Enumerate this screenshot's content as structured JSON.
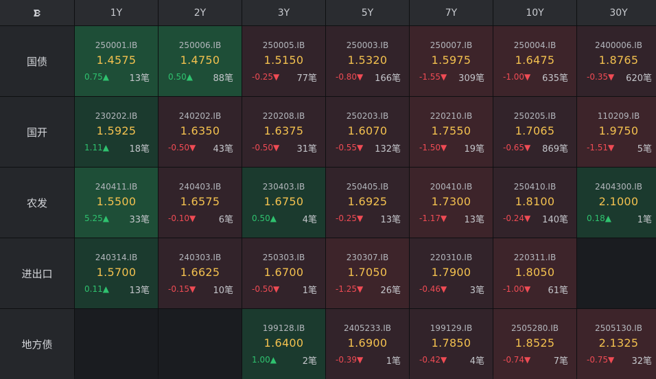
{
  "header": {
    "corner_icon": "sort-logo-icon",
    "tenors": [
      "1Y",
      "2Y",
      "3Y",
      "5Y",
      "7Y",
      "10Y",
      "30Y"
    ]
  },
  "rows": [
    {
      "label": "国债",
      "cells": [
        {
          "code": "250001.IB",
          "yield": "1.4575",
          "change": "0.75▲",
          "count": "13笔",
          "dir": "up",
          "strong": true
        },
        {
          "code": "250006.IB",
          "yield": "1.4750",
          "change": "0.50▲",
          "count": "88笔",
          "dir": "up",
          "strong": true
        },
        {
          "code": "250005.IB",
          "yield": "1.5150",
          "change": "-0.25▼",
          "count": "77笔",
          "dir": "down"
        },
        {
          "code": "250003.IB",
          "yield": "1.5320",
          "change": "-0.80▼",
          "count": "166笔",
          "dir": "down"
        },
        {
          "code": "250007.IB",
          "yield": "1.5975",
          "change": "-1.55▼",
          "count": "309笔",
          "dir": "down",
          "strong": true
        },
        {
          "code": "250004.IB",
          "yield": "1.6475",
          "change": "-1.00▼",
          "count": "635笔",
          "dir": "down",
          "strong": true
        },
        {
          "code": "2400006.IB",
          "yield": "1.8765",
          "change": "-0.35▼",
          "count": "620笔",
          "dir": "down"
        }
      ]
    },
    {
      "label": "国开",
      "cells": [
        {
          "code": "230202.IB",
          "yield": "1.5925",
          "change": "1.11▲",
          "count": "18笔",
          "dir": "up"
        },
        {
          "code": "240202.IB",
          "yield": "1.6350",
          "change": "-0.50▼",
          "count": "43笔",
          "dir": "down"
        },
        {
          "code": "220208.IB",
          "yield": "1.6375",
          "change": "-0.50▼",
          "count": "31笔",
          "dir": "down"
        },
        {
          "code": "250203.IB",
          "yield": "1.6070",
          "change": "-0.55▼",
          "count": "132笔",
          "dir": "down"
        },
        {
          "code": "220210.IB",
          "yield": "1.7550",
          "change": "-1.50▼",
          "count": "19笔",
          "dir": "down",
          "strong": true
        },
        {
          "code": "250205.IB",
          "yield": "1.7065",
          "change": "-0.65▼",
          "count": "869笔",
          "dir": "down"
        },
        {
          "code": "110209.IB",
          "yield": "1.9750",
          "change": "-1.51▼",
          "count": "5笔",
          "dir": "down",
          "strong": true
        }
      ]
    },
    {
      "label": "农发",
      "cells": [
        {
          "code": "240411.IB",
          "yield": "1.5500",
          "change": "5.25▲",
          "count": "33笔",
          "dir": "up",
          "strong": true
        },
        {
          "code": "240403.IB",
          "yield": "1.6575",
          "change": "-0.10▼",
          "count": "6笔",
          "dir": "down"
        },
        {
          "code": "230403.IB",
          "yield": "1.6750",
          "change": "0.50▲",
          "count": "4笔",
          "dir": "up"
        },
        {
          "code": "250405.IB",
          "yield": "1.6925",
          "change": "-0.25▼",
          "count": "13笔",
          "dir": "down"
        },
        {
          "code": "200410.IB",
          "yield": "1.7300",
          "change": "-1.17▼",
          "count": "13笔",
          "dir": "down",
          "strong": true
        },
        {
          "code": "250410.IB",
          "yield": "1.8100",
          "change": "-0.24▼",
          "count": "140笔",
          "dir": "down"
        },
        {
          "code": "2404300.IB",
          "yield": "2.1000",
          "change": "0.18▲",
          "count": "1笔",
          "dir": "up"
        }
      ]
    },
    {
      "label": "进出口",
      "cells": [
        {
          "code": "240314.IB",
          "yield": "1.5700",
          "change": "0.11▲",
          "count": "13笔",
          "dir": "up"
        },
        {
          "code": "240303.IB",
          "yield": "1.6625",
          "change": "-0.15▼",
          "count": "10笔",
          "dir": "down"
        },
        {
          "code": "250303.IB",
          "yield": "1.6700",
          "change": "-0.50▼",
          "count": "1笔",
          "dir": "down"
        },
        {
          "code": "230307.IB",
          "yield": "1.7050",
          "change": "-1.25▼",
          "count": "26笔",
          "dir": "down",
          "strong": true
        },
        {
          "code": "220310.IB",
          "yield": "1.7900",
          "change": "-0.46▼",
          "count": "3笔",
          "dir": "down"
        },
        {
          "code": "220311.IB",
          "yield": "1.8050",
          "change": "-1.00▼",
          "count": "61笔",
          "dir": "down",
          "strong": true
        },
        null
      ]
    },
    {
      "label": "地方债",
      "cells": [
        null,
        null,
        {
          "code": "199128.IB",
          "yield": "1.6400",
          "change": "1.00▲",
          "count": "2笔",
          "dir": "up"
        },
        {
          "code": "2405233.IB",
          "yield": "1.6900",
          "change": "-0.39▼",
          "count": "1笔",
          "dir": "down"
        },
        {
          "code": "199129.IB",
          "yield": "1.7850",
          "change": "-0.42▼",
          "count": "4笔",
          "dir": "down"
        },
        {
          "code": "2505280.IB",
          "yield": "1.8525",
          "change": "-0.74▼",
          "count": "7笔",
          "dir": "down",
          "strong": true
        },
        {
          "code": "2505130.IB",
          "yield": "2.1325",
          "change": "-0.75▼",
          "count": "32笔",
          "dir": "down",
          "strong": true
        }
      ]
    }
  ]
}
